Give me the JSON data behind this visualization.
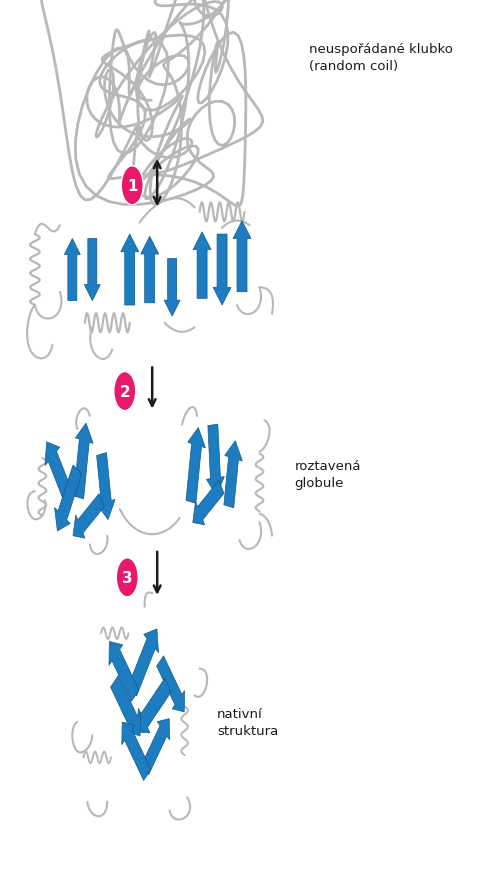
{
  "bg_color": "#ffffff",
  "gray_coil": "#b8b8b8",
  "blue_arrow": "#1e7cc0",
  "blue_dark": "#0d5a8a",
  "pink_circle": "#e8186d",
  "text_color": "#1a1a1a",
  "arrow_color": "#1a1a1a",
  "label1": "neuspořádané klubko\n(random coil)",
  "label2": "roztavená\nglobule",
  "label3": "nativní\nstruktura",
  "fig_width": 4.99,
  "fig_height": 8.87,
  "dpi": 100
}
